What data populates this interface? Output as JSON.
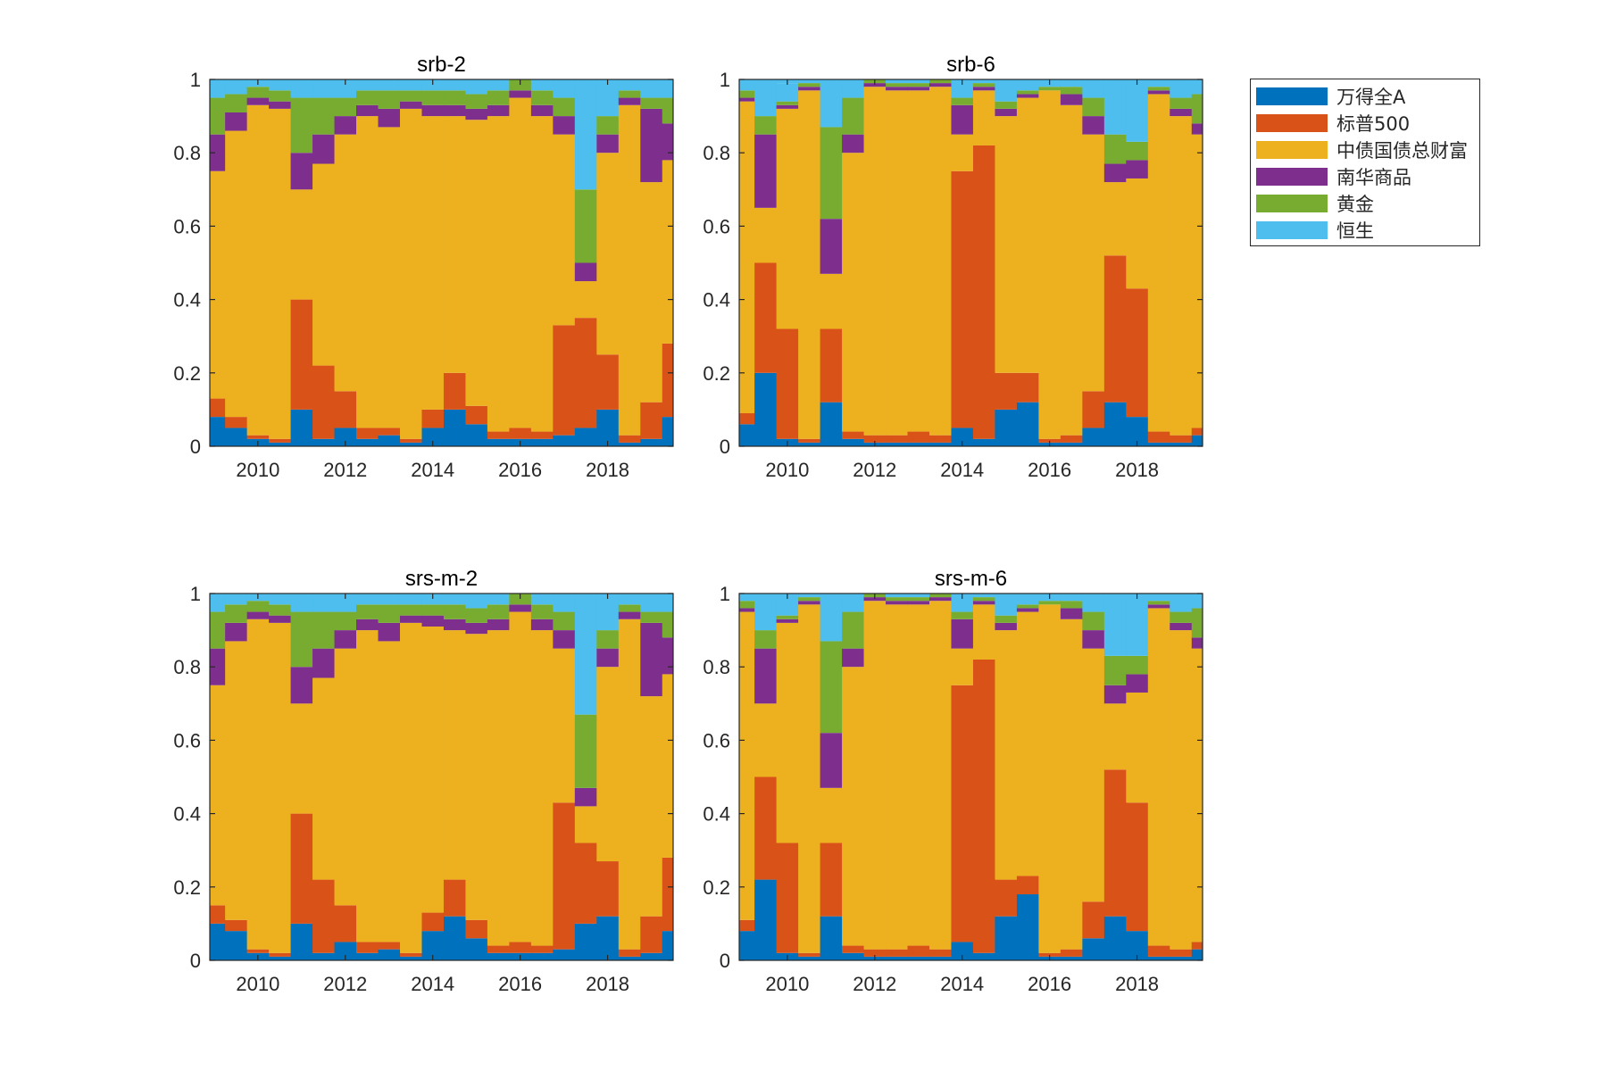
{
  "colors": {
    "axis": "#262626",
    "series": [
      "#0072BD",
      "#D95319",
      "#EDB120",
      "#7E2F8E",
      "#77AC30",
      "#4DBEEE"
    ]
  },
  "legend": {
    "entries": [
      "万得全A",
      "标普500",
      "中债国债总财富",
      "南华商品",
      "黄金",
      "恒生"
    ]
  },
  "chart_data": [
    {
      "type": "area",
      "stacked": true,
      "title": "srb-2",
      "xlabel": "",
      "ylabel": "",
      "xlim": [
        2008.9,
        2019.5
      ],
      "ylim": [
        0,
        1
      ],
      "xticks": [
        "2010",
        "2012",
        "2014",
        "2016",
        "2018"
      ],
      "yticks": [
        "0",
        "0.2",
        "0.4",
        "0.6",
        "0.8",
        "1"
      ],
      "x": [
        2009,
        2009.5,
        2010,
        2010.5,
        2011,
        2011.5,
        2012,
        2012.5,
        2013,
        2013.5,
        2014,
        2014.5,
        2015,
        2015.5,
        2016,
        2016.5,
        2017,
        2017.5,
        2018,
        2018.5,
        2019,
        2019.5
      ],
      "series": [
        {
          "name": "万得全A",
          "values": [
            0.08,
            0.05,
            0.02,
            0.01,
            0.1,
            0.02,
            0.05,
            0.02,
            0.03,
            0.01,
            0.05,
            0.1,
            0.06,
            0.02,
            0.02,
            0.02,
            0.03,
            0.05,
            0.1,
            0.01,
            0.02,
            0.08
          ]
        },
        {
          "name": "标普500",
          "values": [
            0.05,
            0.03,
            0.01,
            0.01,
            0.3,
            0.2,
            0.1,
            0.03,
            0.02,
            0.01,
            0.05,
            0.1,
            0.05,
            0.02,
            0.03,
            0.02,
            0.3,
            0.3,
            0.15,
            0.02,
            0.1,
            0.2
          ]
        },
        {
          "name": "中债国债总财富",
          "values": [
            0.62,
            0.78,
            0.9,
            0.9,
            0.3,
            0.55,
            0.7,
            0.85,
            0.82,
            0.9,
            0.8,
            0.7,
            0.78,
            0.86,
            0.9,
            0.86,
            0.52,
            0.1,
            0.55,
            0.9,
            0.6,
            0.5
          ]
        },
        {
          "name": "南华商品",
          "values": [
            0.1,
            0.05,
            0.02,
            0.02,
            0.1,
            0.08,
            0.05,
            0.03,
            0.05,
            0.02,
            0.03,
            0.03,
            0.03,
            0.03,
            0.02,
            0.03,
            0.05,
            0.05,
            0.05,
            0.02,
            0.2,
            0.1
          ]
        },
        {
          "name": "黄金",
          "values": [
            0.1,
            0.05,
            0.03,
            0.03,
            0.15,
            0.1,
            0.05,
            0.04,
            0.05,
            0.03,
            0.04,
            0.04,
            0.04,
            0.04,
            0.03,
            0.04,
            0.05,
            0.2,
            0.05,
            0.02,
            0.03,
            0.07
          ]
        },
        {
          "name": "恒生",
          "values": [
            0.05,
            0.04,
            0.02,
            0.03,
            0.05,
            0.05,
            0.05,
            0.03,
            0.03,
            0.03,
            0.03,
            0.03,
            0.04,
            0.03,
            0.0,
            0.03,
            0.05,
            0.3,
            0.1,
            0.03,
            0.05,
            0.05
          ]
        }
      ]
    },
    {
      "type": "area",
      "stacked": true,
      "title": "srb-6",
      "xlabel": "",
      "ylabel": "",
      "xlim": [
        2008.9,
        2019.5
      ],
      "ylim": [
        0,
        1
      ],
      "xticks": [
        "2010",
        "2012",
        "2014",
        "2016",
        "2018"
      ],
      "yticks": [
        "0",
        "0.2",
        "0.4",
        "0.6",
        "0.8",
        "1"
      ],
      "x": [
        2009,
        2009.5,
        2010,
        2010.5,
        2011,
        2011.5,
        2012,
        2012.5,
        2013,
        2013.5,
        2014,
        2014.5,
        2015,
        2015.5,
        2016,
        2016.5,
        2017,
        2017.5,
        2018,
        2018.5,
        2019,
        2019.5
      ],
      "series": [
        {
          "name": "万得全A",
          "values": [
            0.06,
            0.2,
            0.02,
            0.01,
            0.12,
            0.02,
            0.01,
            0.01,
            0.01,
            0.01,
            0.05,
            0.02,
            0.1,
            0.12,
            0.01,
            0.01,
            0.05,
            0.12,
            0.08,
            0.01,
            0.01,
            0.03
          ]
        },
        {
          "name": "标普500",
          "values": [
            0.03,
            0.3,
            0.3,
            0.01,
            0.2,
            0.02,
            0.02,
            0.02,
            0.03,
            0.02,
            0.7,
            0.8,
            0.1,
            0.08,
            0.01,
            0.02,
            0.1,
            0.4,
            0.35,
            0.03,
            0.02,
            0.02
          ]
        },
        {
          "name": "中债国债总财富",
          "values": [
            0.85,
            0.15,
            0.6,
            0.95,
            0.15,
            0.76,
            0.95,
            0.94,
            0.93,
            0.95,
            0.1,
            0.15,
            0.7,
            0.75,
            0.95,
            0.9,
            0.7,
            0.2,
            0.3,
            0.92,
            0.87,
            0.8
          ]
        },
        {
          "name": "南华商品",
          "values": [
            0.01,
            0.2,
            0.01,
            0.01,
            0.15,
            0.05,
            0.01,
            0.01,
            0.01,
            0.01,
            0.08,
            0.01,
            0.02,
            0.01,
            0.0,
            0.03,
            0.05,
            0.05,
            0.05,
            0.01,
            0.02,
            0.03
          ]
        },
        {
          "name": "黄金",
          "values": [
            0.02,
            0.05,
            0.01,
            0.01,
            0.25,
            0.1,
            0.01,
            0.01,
            0.01,
            0.01,
            0.02,
            0.01,
            0.02,
            0.01,
            0.01,
            0.02,
            0.05,
            0.08,
            0.05,
            0.01,
            0.03,
            0.08
          ]
        },
        {
          "name": "恒生",
          "values": [
            0.03,
            0.1,
            0.05,
            0.01,
            0.13,
            0.05,
            0.0,
            0.01,
            0.01,
            0.0,
            0.05,
            0.01,
            0.06,
            0.03,
            0.02,
            0.02,
            0.05,
            0.15,
            0.17,
            0.02,
            0.05,
            0.04
          ]
        }
      ]
    },
    {
      "type": "area",
      "stacked": true,
      "title": "srs-m-2",
      "xlabel": "",
      "ylabel": "",
      "xlim": [
        2008.9,
        2019.5
      ],
      "ylim": [
        0,
        1
      ],
      "xticks": [
        "2010",
        "2012",
        "2014",
        "2016",
        "2018"
      ],
      "yticks": [
        "0",
        "0.2",
        "0.4",
        "0.6",
        "0.8",
        "1"
      ],
      "x": [
        2009,
        2009.5,
        2010,
        2010.5,
        2011,
        2011.5,
        2012,
        2012.5,
        2013,
        2013.5,
        2014,
        2014.5,
        2015,
        2015.5,
        2016,
        2016.5,
        2017,
        2017.5,
        2018,
        2018.5,
        2019,
        2019.5
      ],
      "series": [
        {
          "name": "万得全A",
          "values": [
            0.1,
            0.08,
            0.02,
            0.01,
            0.1,
            0.02,
            0.05,
            0.02,
            0.03,
            0.01,
            0.08,
            0.12,
            0.06,
            0.02,
            0.02,
            0.02,
            0.03,
            0.1,
            0.12,
            0.01,
            0.02,
            0.08
          ]
        },
        {
          "name": "标普500",
          "values": [
            0.05,
            0.03,
            0.01,
            0.01,
            0.3,
            0.2,
            0.1,
            0.03,
            0.02,
            0.01,
            0.05,
            0.1,
            0.05,
            0.02,
            0.03,
            0.02,
            0.4,
            0.22,
            0.15,
            0.02,
            0.1,
            0.2
          ]
        },
        {
          "name": "中债国债总财富",
          "values": [
            0.6,
            0.76,
            0.9,
            0.9,
            0.3,
            0.55,
            0.7,
            0.85,
            0.82,
            0.9,
            0.78,
            0.68,
            0.78,
            0.86,
            0.9,
            0.86,
            0.42,
            0.1,
            0.53,
            0.9,
            0.6,
            0.5
          ]
        },
        {
          "name": "南华商品",
          "values": [
            0.1,
            0.05,
            0.02,
            0.02,
            0.1,
            0.08,
            0.05,
            0.03,
            0.05,
            0.02,
            0.03,
            0.03,
            0.03,
            0.03,
            0.02,
            0.03,
            0.05,
            0.05,
            0.05,
            0.02,
            0.2,
            0.1
          ]
        },
        {
          "name": "黄金",
          "values": [
            0.1,
            0.05,
            0.03,
            0.03,
            0.15,
            0.1,
            0.05,
            0.04,
            0.05,
            0.03,
            0.03,
            0.04,
            0.04,
            0.04,
            0.03,
            0.04,
            0.05,
            0.2,
            0.05,
            0.02,
            0.03,
            0.07
          ]
        },
        {
          "name": "恒生",
          "values": [
            0.05,
            0.03,
            0.02,
            0.03,
            0.05,
            0.05,
            0.05,
            0.03,
            0.03,
            0.03,
            0.03,
            0.03,
            0.04,
            0.03,
            0.0,
            0.03,
            0.05,
            0.33,
            0.1,
            0.03,
            0.05,
            0.05
          ]
        }
      ]
    },
    {
      "type": "area",
      "stacked": true,
      "title": "srs-m-6",
      "xlabel": "",
      "ylabel": "",
      "xlim": [
        2008.9,
        2019.5
      ],
      "ylim": [
        0,
        1
      ],
      "xticks": [
        "2010",
        "2012",
        "2014",
        "2016",
        "2018"
      ],
      "yticks": [
        "0",
        "0.2",
        "0.4",
        "0.6",
        "0.8",
        "1"
      ],
      "x": [
        2009,
        2009.5,
        2010,
        2010.5,
        2011,
        2011.5,
        2012,
        2012.5,
        2013,
        2013.5,
        2014,
        2014.5,
        2015,
        2015.5,
        2016,
        2016.5,
        2017,
        2017.5,
        2018,
        2018.5,
        2019,
        2019.5
      ],
      "series": [
        {
          "name": "万得全A",
          "values": [
            0.08,
            0.22,
            0.02,
            0.01,
            0.12,
            0.02,
            0.01,
            0.01,
            0.01,
            0.01,
            0.05,
            0.02,
            0.12,
            0.18,
            0.01,
            0.01,
            0.06,
            0.12,
            0.08,
            0.01,
            0.01,
            0.03
          ]
        },
        {
          "name": "标普500",
          "values": [
            0.03,
            0.28,
            0.3,
            0.01,
            0.2,
            0.02,
            0.02,
            0.02,
            0.03,
            0.02,
            0.7,
            0.8,
            0.1,
            0.05,
            0.01,
            0.02,
            0.1,
            0.4,
            0.35,
            0.03,
            0.02,
            0.02
          ]
        },
        {
          "name": "中债国债总财富",
          "values": [
            0.84,
            0.2,
            0.6,
            0.95,
            0.15,
            0.76,
            0.95,
            0.94,
            0.93,
            0.95,
            0.1,
            0.15,
            0.68,
            0.72,
            0.95,
            0.9,
            0.69,
            0.18,
            0.3,
            0.92,
            0.87,
            0.8
          ]
        },
        {
          "name": "南华商品",
          "values": [
            0.01,
            0.15,
            0.01,
            0.01,
            0.15,
            0.05,
            0.01,
            0.01,
            0.01,
            0.01,
            0.08,
            0.01,
            0.02,
            0.01,
            0.0,
            0.03,
            0.05,
            0.05,
            0.05,
            0.01,
            0.02,
            0.03
          ]
        },
        {
          "name": "黄金",
          "values": [
            0.02,
            0.05,
            0.01,
            0.01,
            0.25,
            0.1,
            0.01,
            0.01,
            0.01,
            0.01,
            0.02,
            0.01,
            0.02,
            0.01,
            0.01,
            0.02,
            0.05,
            0.08,
            0.05,
            0.01,
            0.03,
            0.08
          ]
        },
        {
          "name": "恒生",
          "values": [
            0.02,
            0.1,
            0.06,
            0.01,
            0.13,
            0.05,
            0.0,
            0.01,
            0.01,
            0.0,
            0.05,
            0.01,
            0.06,
            0.03,
            0.02,
            0.02,
            0.05,
            0.17,
            0.17,
            0.02,
            0.05,
            0.04
          ]
        }
      ]
    }
  ]
}
